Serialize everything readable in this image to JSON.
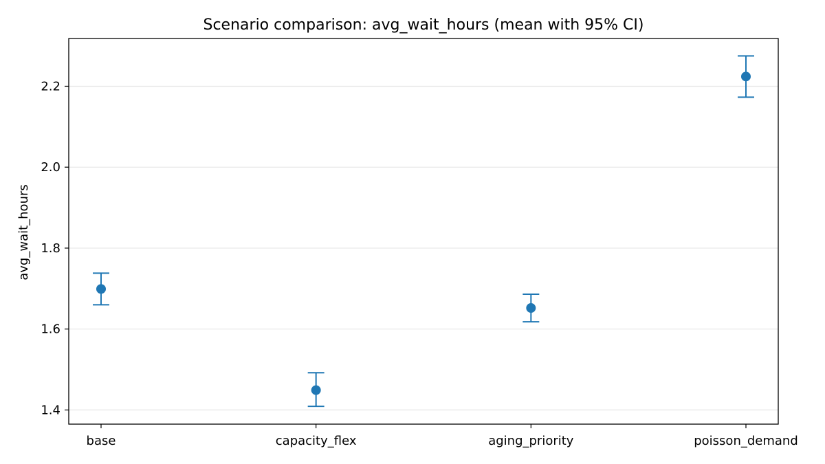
{
  "chart_data": {
    "type": "scatter",
    "title": "Scenario comparison: avg_wait_hours (mean with 95% CI)",
    "xlabel": "",
    "ylabel": "avg_wait_hours",
    "categories": [
      "base",
      "capacity_flex",
      "aging_priority",
      "poisson_demand"
    ],
    "series": [
      {
        "values": [
          1.699,
          1.449,
          1.652,
          2.224
        ],
        "ci_lower": [
          1.66,
          1.409,
          1.618,
          2.173
        ],
        "ci_upper": [
          1.738,
          1.492,
          1.686,
          2.275
        ]
      }
    ],
    "ylim": [
      1.365,
      2.318
    ],
    "yticks": [
      1.4,
      1.6,
      1.8,
      2.0,
      2.2
    ],
    "ytick_labels": [
      "1.4",
      "1.6",
      "1.8",
      "2.0",
      "2.2"
    ],
    "grid": "horizontal",
    "colors": {
      "series": "#1f77b4",
      "grid": "#e6e6e6",
      "axes": "#000000"
    }
  }
}
